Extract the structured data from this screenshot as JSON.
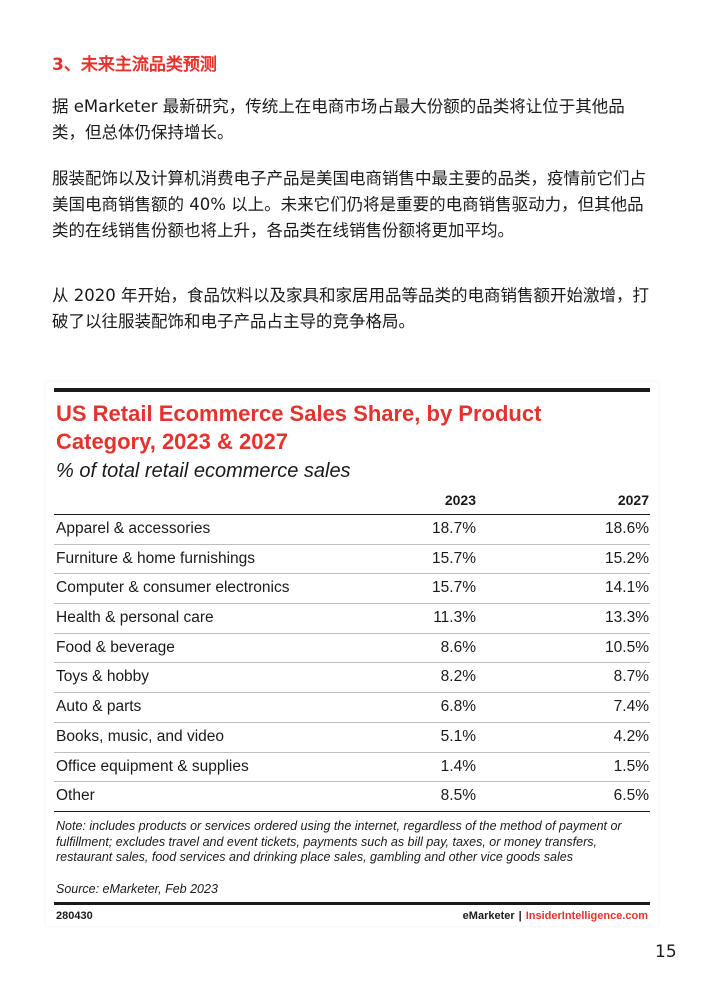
{
  "section_title": "3、未来主流品类预测",
  "paragraphs": [
    "据 eMarketer 最新研究，传统上在电商市场占最大份额的品类将让位于其他品类，但总体仍保持增长。",
    "服装配饰以及计算机消费电子产品是美国电商销售中最主要的品类，疫情前它们占美国电商销售额的 40% 以上。未来它们仍将是重要的电商销售驱动力，但其他品类的在线销售份额也将上升，各品类在线销售份额将更加平均。",
    "从 2020 年开始，食品饮料以及家具和家居用品等品类的电商销售额开始激增，打破了以往服装配饰和电子产品占主导的竞争格局。"
  ],
  "figure": {
    "title": "US Retail Ecommerce Sales Share, by Product Category, 2023 & 2027",
    "subtitle": "% of total retail ecommerce sales",
    "columns": [
      "2023",
      "2027"
    ],
    "rows": [
      {
        "category": "Apparel & accessories",
        "v2023": "18.7%",
        "v2027": "18.6%"
      },
      {
        "category": "Furniture & home furnishings",
        "v2023": "15.7%",
        "v2027": "15.2%"
      },
      {
        "category": "Computer & consumer electronics",
        "v2023": "15.7%",
        "v2027": "14.1%"
      },
      {
        "category": "Health & personal care",
        "v2023": "11.3%",
        "v2027": "13.3%"
      },
      {
        "category": "Food & beverage",
        "v2023": "8.6%",
        "v2027": "10.5%"
      },
      {
        "category": "Toys & hobby",
        "v2023": "8.2%",
        "v2027": "8.7%"
      },
      {
        "category": "Auto & parts",
        "v2023": "6.8%",
        "v2027": "7.4%"
      },
      {
        "category": "Books, music, and video",
        "v2023": "5.1%",
        "v2027": "4.2%"
      },
      {
        "category": "Office equipment & supplies",
        "v2023": "1.4%",
        "v2027": "1.5%"
      },
      {
        "category": "Other",
        "v2023": "8.5%",
        "v2027": "6.5%"
      }
    ],
    "note": "Note: includes products or services ordered using the internet, regardless of the method of payment or fulfillment; excludes travel and event tickets, payments such as bill pay, taxes, or money transfers, restaurant sales, food services and drinking place sales, gambling and other vice goods sales",
    "source": "Source: eMarketer, Feb 2023",
    "chart_id": "280430",
    "brand_primary": "eMarketer",
    "brand_separator": "|",
    "brand_secondary": "InsiderIntelligence.com"
  },
  "page_number": "15",
  "colors": {
    "accent": "#e5322d",
    "text": "#1a1a1a"
  }
}
